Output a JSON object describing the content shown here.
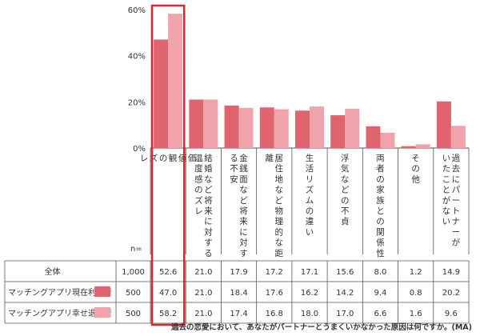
{
  "chart_data": {
    "type": "bar",
    "ylim": [
      0,
      60
    ],
    "yticks": [
      "0%",
      "20%",
      "40%",
      "60%"
    ],
    "n_label": "n=",
    "categories": [
      "価値観のズレ",
      "結婚など将来に対する温度感のズレ",
      "金銭面など将来に対する不安",
      "居住地など物理的な距離",
      "生活リズムの違い",
      "浮気などの不貞",
      "両者の家族との関係性",
      "その他",
      "過去にパートナーがいたことがない"
    ],
    "category_lines": [
      [
        "価",
        "値",
        "観",
        "の",
        "ズ",
        "レ"
      ],
      [
        "結婚など将来に対する",
        "温度感のズレ"
      ],
      [
        "金銭面など将来に対す",
        "る不安"
      ],
      [
        "居住地など物理的な距",
        "離"
      ],
      [
        "生活リズムの違い"
      ],
      [
        "浮気などの不貞"
      ],
      [
        "両者の家族との関係性"
      ],
      [
        "その他"
      ],
      [
        "過去にパートナーが",
        "いたことがない"
      ]
    ],
    "series": [
      {
        "name": "マッチングアプリ現在利用者",
        "n": "500",
        "color": "#e0646e",
        "values": [
          47.0,
          21.0,
          18.4,
          17.6,
          16.2,
          14.2,
          9.4,
          0.8,
          20.2
        ]
      },
      {
        "name": "マッチングアプリ幸せ退会者",
        "n": "500",
        "color": "#f0a3ab",
        "values": [
          58.2,
          21.0,
          17.4,
          16.8,
          18.0,
          17.0,
          6.6,
          1.6,
          9.6
        ]
      }
    ],
    "total": {
      "name": "全体",
      "n": "1,000",
      "values": [
        "52.6",
        "21.0",
        "17.9",
        "17.2",
        "17.1",
        "15.6",
        "8.0",
        "1.2",
        "14.9"
      ]
    },
    "table": {
      "rows": [
        [
          "52.6",
          "21.0",
          "17.9",
          "17.2",
          "17.1",
          "15.6",
          "8.0",
          "1.2",
          "14.9"
        ],
        [
          "47.0",
          "21.0",
          "18.4",
          "17.6",
          "16.2",
          "14.2",
          "9.4",
          "0.8",
          "20.2"
        ],
        [
          "58.2",
          "21.0",
          "17.4",
          "16.8",
          "18.0",
          "17.0",
          "6.6",
          "1.6",
          "9.6"
        ]
      ]
    },
    "highlight_category": 0,
    "highlight_color": "#d9262f",
    "caption": "過去の恋愛において、あなたがパートナーとうまくいかなかった原因は何ですか。(MA)"
  }
}
